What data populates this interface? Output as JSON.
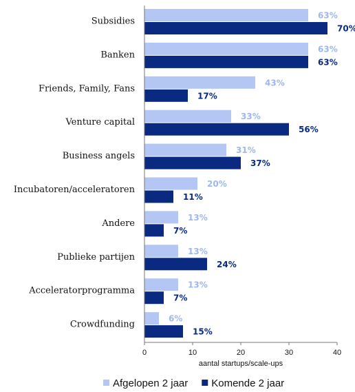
{
  "chart_data": {
    "type": "barh",
    "categories": [
      "Subsidies",
      "Banken",
      "Friends, Family, Fans",
      "Venture capital",
      "Business angels",
      "Incubatoren/acceleratoren",
      "Andere",
      "Publieke partijen",
      "Acceleratorprogramma",
      "Crowdfunding"
    ],
    "series": [
      {
        "name": "Afgelopen 2 jaar",
        "color": "#b4c6f4",
        "label_color": "#9fb7ee",
        "values": [
          34,
          34,
          23,
          18,
          17,
          11,
          7,
          7,
          7,
          3
        ],
        "percent_labels": [
          "63%",
          "63%",
          "43%",
          "33%",
          "31%",
          "20%",
          "13%",
          "13%",
          "13%",
          "6%"
        ]
      },
      {
        "name": "Komende 2 jaar",
        "color": "#0a2a82",
        "label_color": "#0a2a82",
        "values": [
          38,
          34,
          9,
          30,
          20,
          6,
          4,
          13,
          4,
          8
        ],
        "percent_labels": [
          "70%",
          "63%",
          "17%",
          "56%",
          "37%",
          "11%",
          "7%",
          "24%",
          "7%",
          "15%"
        ]
      }
    ],
    "xlabel": "aantal startups/scale-ups",
    "xlim": [
      0,
      40
    ],
    "xticks": [
      0,
      10,
      20,
      30,
      40
    ],
    "legend": "bottom"
  }
}
